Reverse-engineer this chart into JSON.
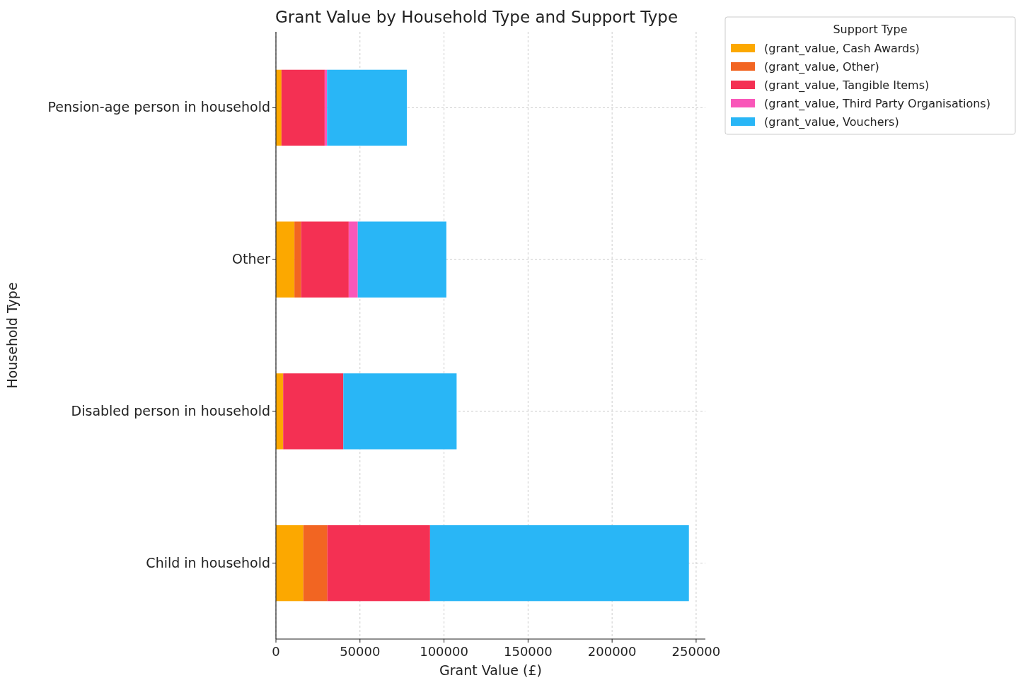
{
  "chart_data": {
    "type": "bar",
    "orientation": "horizontal",
    "stacked": true,
    "title": "Grant Value by Household Type and Support Type",
    "xlabel": "Grant Value (£)",
    "ylabel": "Household Type",
    "legend_title": "Support Type",
    "legend": "top right",
    "grid": true,
    "categories": [
      "Pension-age person in household",
      "Other",
      "Disabled person in household",
      "Child in household"
    ],
    "xlim": [
      0,
      255500
    ],
    "xticks": [
      0,
      50000,
      100000,
      150000,
      200000,
      250000
    ],
    "series": [
      {
        "name": "(grant_value, Cash Awards)",
        "color": "#fca800",
        "values": [
          3300,
          11000,
          4300,
          16300
        ]
      },
      {
        "name": "(grant_value, Other)",
        "color": "#f26522",
        "values": [
          0,
          4000,
          0,
          14300
        ]
      },
      {
        "name": "(grant_value, Tangible Items)",
        "color": "#f43053",
        "values": [
          25700,
          28300,
          35800,
          61100
        ]
      },
      {
        "name": "(grant_value, Third Party Organisations)",
        "color": "#f957b9",
        "values": [
          1400,
          5400,
          0,
          0
        ]
      },
      {
        "name": "(grant_value, Vouchers)",
        "color": "#29b6f6",
        "values": [
          47500,
          52700,
          67400,
          154000
        ]
      }
    ]
  }
}
